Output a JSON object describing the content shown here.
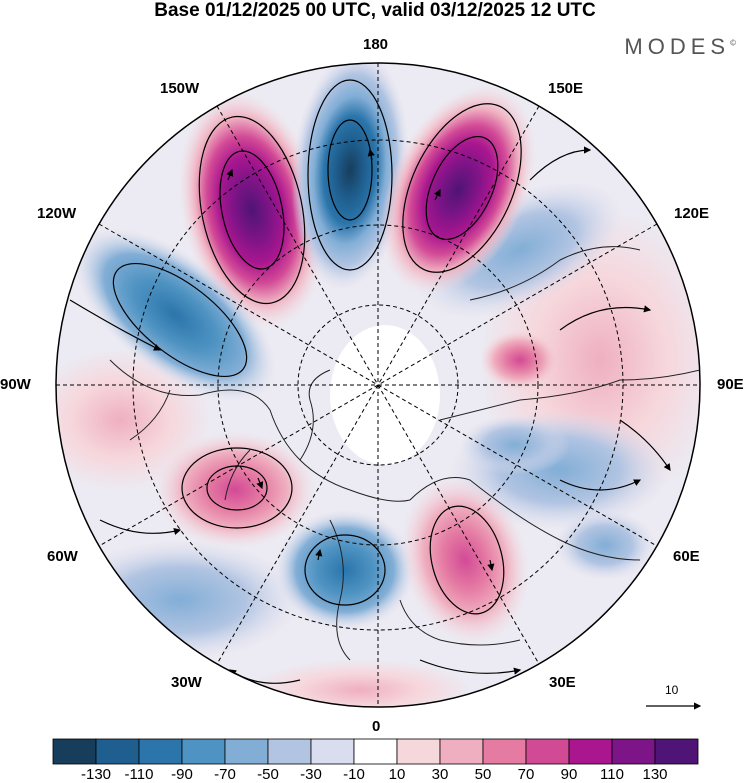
{
  "title": "Base 01/12/2025 00 UTC, valid 03/12/2025 12 UTC",
  "brand": "MODES",
  "brand_mark": "©",
  "longitude_labels": {
    "top": "180",
    "bottom": "0",
    "left": "90W",
    "right": "90E",
    "upper_left_outer": "150W",
    "upper_left_inner": "120W",
    "upper_right_outer": "150E",
    "upper_right_inner": "120E",
    "lower_left_inner": "60W",
    "lower_left_outer": "30W",
    "lower_right_inner": "60E",
    "lower_right_outer": "30E"
  },
  "vector_reference": {
    "value": "10"
  },
  "colorbar": {
    "ticks": [
      "-130",
      "-110",
      "-90",
      "-70",
      "-50",
      "-30",
      "-10",
      "10",
      "30",
      "50",
      "70",
      "90",
      "110",
      "130"
    ],
    "colors": [
      "#173d5c",
      "#1f5f8f",
      "#2b75ab",
      "#4e93c2",
      "#82aed6",
      "#b1c4e2",
      "#d9ddef",
      "#ffffff",
      "#f6d7dc",
      "#efafc0",
      "#e57ba3",
      "#d24a96",
      "#a9168f",
      "#7d1487",
      "#4f1475"
    ]
  },
  "colors": {
    "land_outline": "#222222",
    "graticule": "#000000",
    "arrow": "#000000"
  }
}
